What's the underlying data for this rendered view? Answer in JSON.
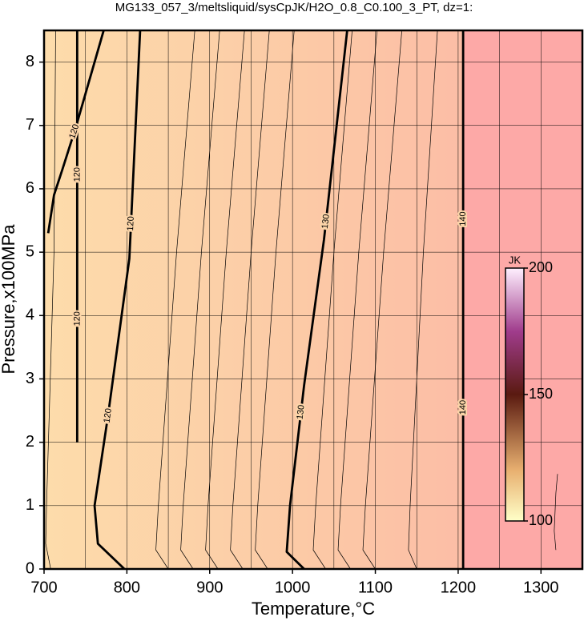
{
  "chart_data": {
    "type": "contour",
    "title": "MG133_057_3/meltsliquid/sysCpJK/H2O_0.8_C0.100_3_PT, dz=1:",
    "x_label": "Temperature,°C",
    "y_label": "Pressure,x100MPa",
    "xlim": [
      700,
      1350
    ],
    "ylim": [
      0,
      8.5
    ],
    "xticks": [
      700,
      800,
      900,
      1000,
      1100,
      1200,
      1300
    ],
    "yticks": [
      0,
      1,
      2,
      3,
      4,
      5,
      6,
      7,
      8
    ],
    "xgrid": [
      750,
      800,
      850,
      900,
      950,
      1000,
      1050,
      1100,
      1150,
      1200,
      1250,
      1300
    ],
    "grid": true,
    "contours": [
      {
        "level": 120,
        "x": [
          740,
          740
        ],
        "y": [
          2,
          8.5
        ]
      },
      {
        "level": 120,
        "x": [
          797,
          765,
          761,
          777,
          803,
          816
        ],
        "y": [
          0,
          0.4,
          1,
          2.4,
          4.9,
          8.5
        ]
      },
      {
        "level": 130,
        "x": [
          1014,
          993,
          997,
          1014,
          1038,
          1066
        ],
        "y": [
          0,
          0.27,
          1,
          2.9,
          5.2,
          8.5
        ]
      },
      {
        "level": 140,
        "x": [
          1206,
          1206
        ],
        "y": [
          0,
          8.5
        ]
      },
      {
        "level": 120,
        "x": [
          705,
          712,
          722,
          739,
          772
        ],
        "y": [
          5.3,
          5.9,
          6.3,
          7.0,
          8.5
        ]
      },
      {
        "x": [
          708,
          702,
          703,
          712,
          714
        ],
        "y": [
          0,
          0.4,
          1,
          5,
          8.5
        ]
      },
      {
        "x": [
          850,
          835,
          838,
          860,
          882
        ],
        "y": [
          0,
          0.3,
          1,
          5,
          8.5
        ]
      },
      {
        "x": [
          880,
          865,
          868,
          890,
          912
        ],
        "y": [
          0,
          0.3,
          1,
          5,
          8.5
        ]
      },
      {
        "x": [
          910,
          895,
          898,
          920,
          942
        ],
        "y": [
          0,
          0.3,
          1,
          5,
          8.5
        ]
      },
      {
        "x": [
          940,
          925,
          928,
          950,
          972
        ],
        "y": [
          0,
          0.3,
          1,
          5,
          8.5
        ]
      },
      {
        "x": [
          970,
          955,
          958,
          980,
          1002
        ],
        "y": [
          0,
          0.3,
          1,
          5,
          8.5
        ]
      },
      {
        "x": [
          1040,
          1025,
          1028,
          1050,
          1072
        ],
        "y": [
          0,
          0.3,
          1,
          5,
          8.5
        ]
      },
      {
        "x": [
          1070,
          1055,
          1058,
          1080,
          1102
        ],
        "y": [
          0,
          0.3,
          1,
          5,
          8.5
        ]
      },
      {
        "x": [
          1100,
          1085,
          1088,
          1110,
          1132
        ],
        "y": [
          0,
          0.3,
          1,
          5,
          8.5
        ]
      },
      {
        "x": [
          1150,
          1140,
          1142,
          1158,
          1175
        ],
        "y": [
          0,
          0.3,
          1,
          5,
          8.5
        ]
      },
      {
        "x": [
          1318,
          1316,
          1318,
          1320
        ],
        "y": [
          0.3,
          0.6,
          1.2,
          1.5
        ]
      }
    ],
    "colorbar": {
      "title": "JK",
      "lim": [
        100,
        200
      ],
      "ticks": [
        100,
        150,
        200
      ]
    }
  }
}
